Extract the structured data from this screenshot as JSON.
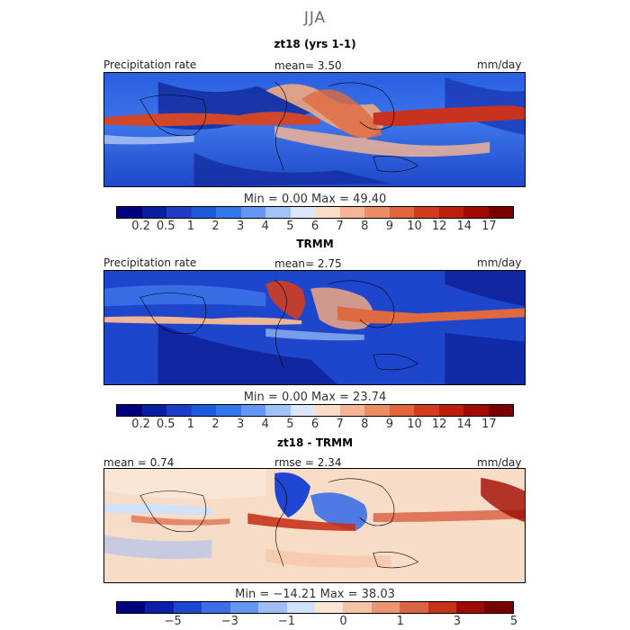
{
  "figure": {
    "season": "JJA"
  },
  "panels": [
    {
      "title": "zt18 (yrs 1-1)",
      "left_label": "Precipitation rate",
      "center_label": "mean=   3.50",
      "right_label": "mm/day",
      "min_max": "Min =    0.00 Max =  49.40",
      "colorbar": {
        "colors": [
          "#00007f",
          "#0a1ea0",
          "#1e3cc8",
          "#1e5adc",
          "#3278eb",
          "#6496f5",
          "#a0c3f5",
          "#dce6fa",
          "#fadcc8",
          "#f5b496",
          "#eb8c64",
          "#e1643c",
          "#d23c1e",
          "#be1e0a",
          "#a00a00",
          "#780000"
        ],
        "labels": [
          "0.2",
          "0.5",
          "1",
          "2",
          "3",
          "4",
          "5",
          "6",
          "7",
          "8",
          "9",
          "10",
          "12",
          "14",
          "17"
        ]
      }
    },
    {
      "title": "TRMM",
      "left_label": "Precipitation rate",
      "center_label": "mean=   2.75",
      "right_label": "mm/day",
      "min_max": "Min =    0.00 Max =  23.74",
      "colorbar": {
        "colors": [
          "#00007f",
          "#0a1ea0",
          "#1e3cc8",
          "#1e5adc",
          "#3278eb",
          "#6496f5",
          "#a0c3f5",
          "#dce6fa",
          "#fadcc8",
          "#f5b496",
          "#eb8c64",
          "#e1643c",
          "#d23c1e",
          "#be1e0a",
          "#a00a00",
          "#780000"
        ],
        "labels": [
          "0.2",
          "0.5",
          "1",
          "2",
          "3",
          "4",
          "5",
          "6",
          "7",
          "8",
          "9",
          "10",
          "12",
          "14",
          "17"
        ]
      }
    },
    {
      "title": "zt18 - TRMM",
      "left_label": "mean =   0.74",
      "center_label": "rmse =   2.34",
      "right_label": "mm/day",
      "min_max": "Min = −14.21 Max =  38.03",
      "colorbar": {
        "colors": [
          "#00007f",
          "#0a1eaa",
          "#1e46d2",
          "#3c6ee6",
          "#6496f0",
          "#a0bef5",
          "#d2e1fa",
          "#fae6d7",
          "#f5c3a5",
          "#eb9673",
          "#dc6446",
          "#c83219",
          "#a00a00",
          "#780000"
        ],
        "labels": [
          "−5",
          "−3",
          "−1",
          "0",
          "1",
          "3",
          "5"
        ]
      }
    }
  ]
}
